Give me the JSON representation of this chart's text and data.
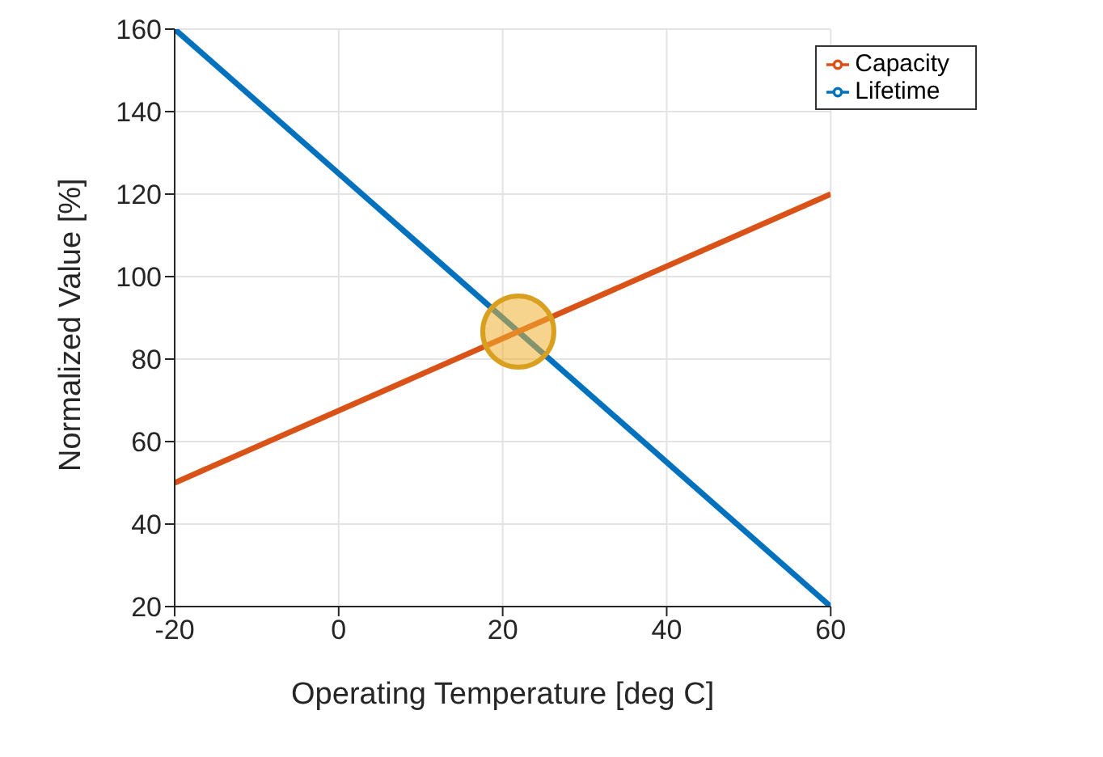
{
  "chart_data": {
    "type": "line",
    "xlabel": "Operating Temperature [deg C]",
    "ylabel": "Normalized Value [%]",
    "x": [
      -20,
      60
    ],
    "series": [
      {
        "name": "Lifetime",
        "color": "#0072bd",
        "values": [
          160,
          20
        ]
      },
      {
        "name": "Capacity",
        "color": "#d95319",
        "values": [
          50,
          120
        ]
      }
    ],
    "xlim": [
      -20,
      60
    ],
    "xticks": [
      -20,
      0,
      20,
      40,
      60
    ],
    "ylim": [
      20,
      160
    ],
    "yticks": [
      20,
      40,
      60,
      80,
      100,
      120,
      140,
      160
    ],
    "grid": true,
    "legend": "top right",
    "marker": "none",
    "line_style": "solid"
  }
}
